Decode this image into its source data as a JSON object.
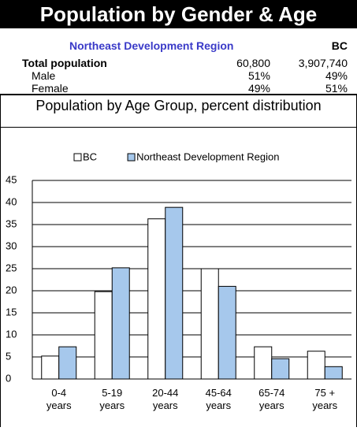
{
  "header": {
    "title": "Population by Gender & Age"
  },
  "table": {
    "columns": [
      "Northeast Development Region",
      "BC"
    ],
    "rows": [
      {
        "label": "Total population",
        "values": [
          "60,800",
          "3,907,740"
        ]
      },
      {
        "label": "Male",
        "values": [
          "51%",
          "49%"
        ]
      },
      {
        "label": "Female",
        "values": [
          "49%",
          "51%"
        ]
      }
    ]
  },
  "chart_data": {
    "type": "bar",
    "title": "Population by Age Group, percent distribution",
    "categories": [
      "0-4 years",
      "5-19 years",
      "20-44 years",
      "45-64 years",
      "65-74 years",
      "75 + years"
    ],
    "series": [
      {
        "name": "BC",
        "color": "#ffffff",
        "values": [
          5.2,
          19.8,
          36.3,
          25,
          7.3,
          6.3
        ]
      },
      {
        "name": "Northeast Development Region",
        "color": "#a6c8ec",
        "values": [
          7.3,
          25.2,
          38.9,
          21,
          4.6,
          2.8
        ]
      }
    ],
    "ylim": [
      0,
      45
    ],
    "yticks": [
      0,
      5,
      10,
      15,
      20,
      25,
      30,
      35,
      40,
      45
    ],
    "grid": true,
    "legend": "top"
  }
}
